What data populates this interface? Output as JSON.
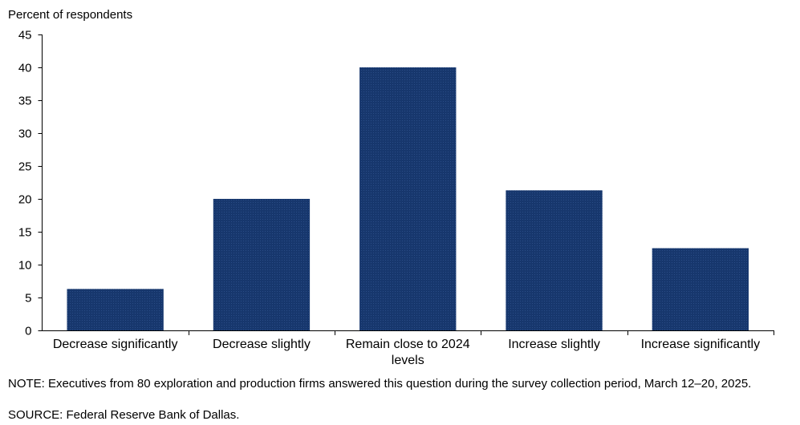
{
  "chart_data": {
    "type": "bar",
    "ylabel": "Percent of respondents",
    "ylim": [
      0,
      45
    ],
    "yticks": [
      0,
      5,
      10,
      15,
      20,
      25,
      30,
      35,
      40,
      45
    ],
    "categories": [
      [
        "Decrease significantly"
      ],
      [
        "Decrease slightly"
      ],
      [
        "Remain close to 2024",
        "levels"
      ],
      [
        "Increase slightly"
      ],
      [
        "Increase significantly"
      ]
    ],
    "values": [
      6.3,
      20.0,
      40.0,
      21.3,
      12.5
    ],
    "bar_color": "#17376d",
    "grid": false,
    "legend": "none"
  },
  "note": "NOTE:  Executives  from 80 exploration  and production firms answered this question  during the survey collection period, March 12–20, 2025.",
  "source": "SOURCE:  Federal Reserve Bank of Dallas."
}
